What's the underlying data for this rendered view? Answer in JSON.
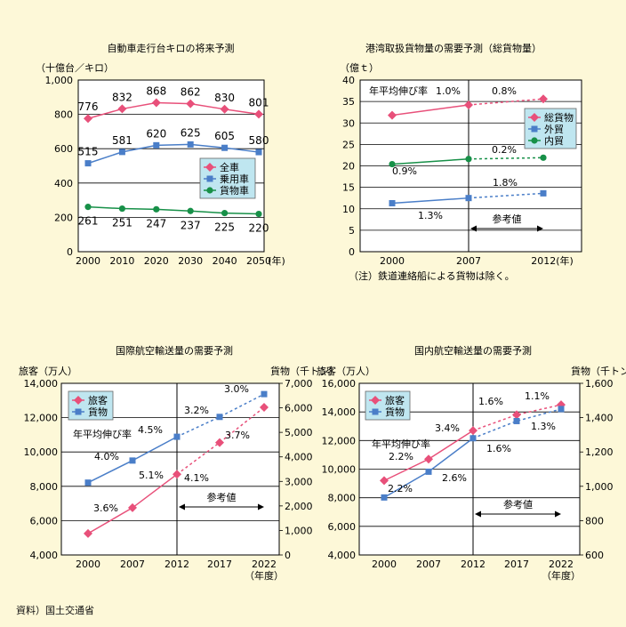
{
  "source": "資料）国土交通省",
  "reference_label": "参考値",
  "chart_data": [
    {
      "type": "line",
      "title": "自動車走行台キロの将来予測",
      "ylabel": "（十億台／キロ）",
      "x": [
        "2000",
        "2010",
        "2020",
        "2030",
        "2040",
        "2050"
      ],
      "x_unit": "(年)",
      "ylim": [
        0,
        1000
      ],
      "yticks": [
        "0",
        "200",
        "400",
        "600",
        "800",
        "1,000"
      ],
      "legend": "right",
      "series": [
        {
          "name": "全車",
          "values": [
            776,
            832,
            868,
            862,
            830,
            801
          ],
          "labels": [
            "776",
            "832",
            "868",
            "862",
            "830",
            "801"
          ],
          "color": "#e8507a",
          "marker": "diamond"
        },
        {
          "name": "乗用車",
          "values": [
            515,
            581,
            620,
            625,
            605,
            580
          ],
          "labels": [
            "515",
            "581",
            "620",
            "625",
            "605",
            "580"
          ],
          "color": "#4a7ec8",
          "marker": "square"
        },
        {
          "name": "貨物車",
          "values": [
            261,
            251,
            247,
            237,
            225,
            220
          ],
          "labels": [
            "261",
            "251",
            "247",
            "237",
            "225",
            "220"
          ],
          "color": "#179048",
          "marker": "circle"
        }
      ]
    },
    {
      "type": "line",
      "title": "港湾取扱貨物量の需要予測（総貨物量）",
      "ylabel": "（億ｔ）",
      "x": [
        "2000",
        "2007",
        "2012(年)"
      ],
      "ylim": [
        0,
        40
      ],
      "yticks": [
        "0",
        "5",
        "10",
        "15",
        "20",
        "25",
        "30",
        "35",
        "40"
      ],
      "growth_label": "年平均伸び率",
      "note": "（注）鉄道連絡船による貨物は除く。",
      "legend": "right",
      "series": [
        {
          "name": "総貨物",
          "values": [
            31.8,
            34.2,
            35.6
          ],
          "color": "#e8507a",
          "marker": "diamond",
          "rates": [
            "1.0%",
            "0.8%"
          ]
        },
        {
          "name": "外貿",
          "values": [
            11.3,
            12.5,
            13.6
          ],
          "color": "#4a7ec8",
          "marker": "square",
          "rates": [
            "1.3%",
            "1.8%"
          ]
        },
        {
          "name": "内貿",
          "values": [
            20.4,
            21.6,
            21.9
          ],
          "color": "#179048",
          "marker": "circle",
          "rates": [
            "0.9%",
            "0.2%"
          ]
        }
      ]
    },
    {
      "type": "line",
      "title": "国際航空輸送量の需要予測",
      "ylabel": "旅客（万人）",
      "y2label": "貨物（千トン）",
      "x": [
        "2000",
        "2007",
        "2012",
        "2017",
        "2022"
      ],
      "x_unit": "（年度）",
      "ylim": [
        4000,
        14000
      ],
      "yticks": [
        "4,000",
        "6,000",
        "8,000",
        "10,000",
        "12,000",
        "14,000"
      ],
      "y2lim": [
        0,
        7000
      ],
      "y2ticks": [
        "0",
        "1,000",
        "2,000",
        "3,000",
        "4,000",
        "5,000",
        "6,000",
        "7,000"
      ],
      "growth_label": "年平均伸び率",
      "legend": "top-left",
      "series": [
        {
          "name": "旅客",
          "axis": "left",
          "values": [
            5250,
            6750,
            8700,
            10550,
            12600
          ],
          "color": "#e8507a",
          "marker": "diamond",
          "rates": [
            "3.6%",
            "5.1%",
            "4.1%",
            "3.7%"
          ]
        },
        {
          "name": "貨物",
          "axis": "right",
          "values": [
            2950,
            3850,
            4820,
            5630,
            6560
          ],
          "color": "#4a7ec8",
          "marker": "square",
          "rates": [
            "4.0%",
            "4.5%",
            "3.2%",
            "3.0%"
          ]
        }
      ]
    },
    {
      "type": "line",
      "title": "国内航空輸送量の需要予測",
      "ylabel": "旅客（万人）",
      "y2label": "貨物（千トン）",
      "x": [
        "2000",
        "2007",
        "2012",
        "2017",
        "2022"
      ],
      "x_unit": "（年度）",
      "ylim": [
        4000,
        16000
      ],
      "yticks": [
        "4,000",
        "6,000",
        "8,000",
        "10,000",
        "12,000",
        "14,000",
        "16,000"
      ],
      "y2lim": [
        600,
        1600
      ],
      "y2ticks": [
        "600",
        "800",
        "1,000",
        "1,200",
        "1,400",
        "1,600"
      ],
      "growth_label": "年平均伸び率",
      "legend": "top-left",
      "series": [
        {
          "name": "旅客",
          "axis": "left",
          "values": [
            9200,
            10700,
            12700,
            13800,
            14500
          ],
          "color": "#e8507a",
          "marker": "diamond",
          "rates": [
            "2.2%",
            "3.4%",
            "1.6%",
            "1.1%"
          ]
        },
        {
          "name": "貨物",
          "axis": "right",
          "values": [
            935,
            1085,
            1280,
            1380,
            1450
          ],
          "color": "#4a7ec8",
          "marker": "square",
          "rates": [
            "2.2%",
            "2.6%",
            "1.6%",
            "1.3%"
          ]
        }
      ]
    }
  ]
}
